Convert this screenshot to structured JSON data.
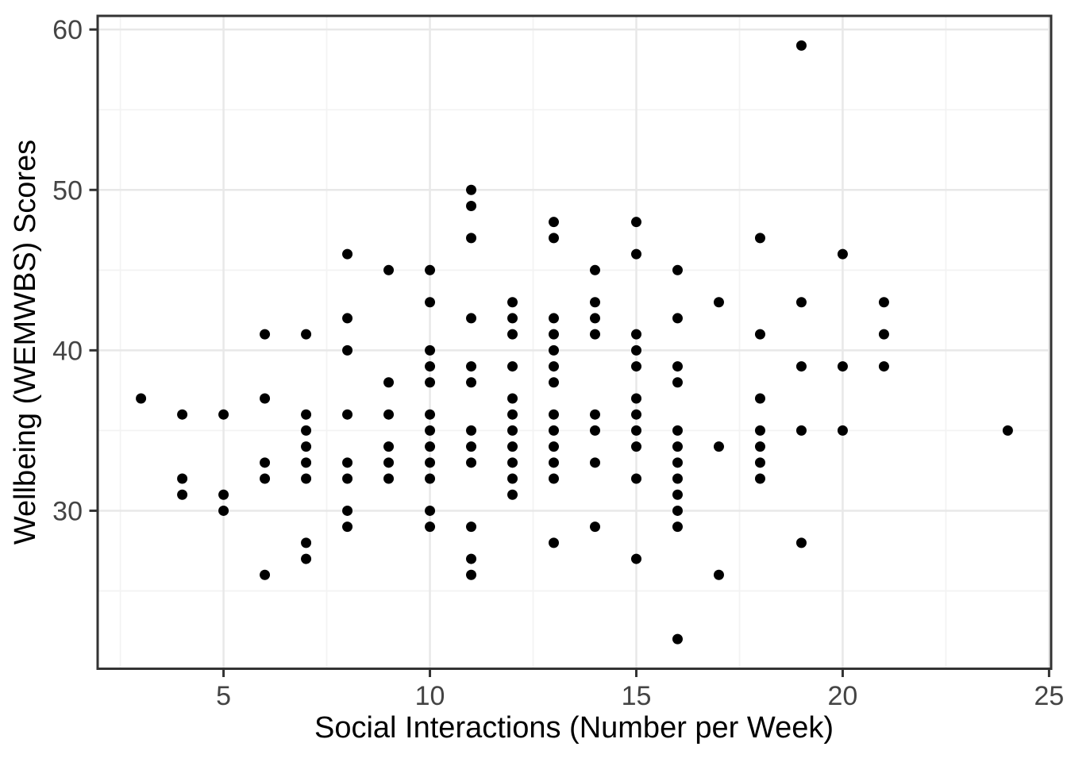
{
  "figure": {
    "background": "#FFFFFF"
  },
  "chart_data": {
    "type": "scatter",
    "title": "",
    "xlabel": "Social Interactions (Number per Week)",
    "ylabel": "Wellbeing (WEMWBS) Scores",
    "xlim": [
      1.95,
      25.05
    ],
    "ylim": [
      20.15,
      60.85
    ],
    "x_major_ticks": [
      5,
      10,
      15,
      20,
      25
    ],
    "y_major_ticks": [
      30,
      40,
      50,
      60
    ],
    "x_minor_gridlines": [
      2.5,
      7.5,
      12.5,
      17.5,
      22.5
    ],
    "y_minor_gridlines": [
      25,
      35,
      45,
      55
    ],
    "grid": "on",
    "legend": "none",
    "point_style": {
      "shape": "circle",
      "radius_px": 6.5,
      "color": "#000000"
    },
    "theme": {
      "panel_border": "#333333",
      "grid_major": "#E8E8E8",
      "grid_minor": "#F3F3F3",
      "tick_color": "#333333",
      "tick_label_color": "#444444",
      "axis_title_color": "#000000"
    },
    "points": [
      [
        3,
        37
      ],
      [
        4,
        36
      ],
      [
        4,
        32
      ],
      [
        4,
        31
      ],
      [
        5,
        36
      ],
      [
        5,
        31
      ],
      [
        5,
        30
      ],
      [
        6,
        41
      ],
      [
        6,
        37
      ],
      [
        6,
        33
      ],
      [
        6,
        32
      ],
      [
        6,
        26
      ],
      [
        7,
        41
      ],
      [
        7,
        36
      ],
      [
        7,
        35
      ],
      [
        7,
        34
      ],
      [
        7,
        33
      ],
      [
        7,
        32
      ],
      [
        7,
        28
      ],
      [
        7,
        27
      ],
      [
        8,
        46
      ],
      [
        8,
        42
      ],
      [
        8,
        40
      ],
      [
        8,
        36
      ],
      [
        8,
        33
      ],
      [
        8,
        32
      ],
      [
        8,
        30
      ],
      [
        8,
        29
      ],
      [
        9,
        45
      ],
      [
        9,
        38
      ],
      [
        9,
        36
      ],
      [
        9,
        34
      ],
      [
        9,
        33
      ],
      [
        9,
        32
      ],
      [
        10,
        45
      ],
      [
        10,
        43
      ],
      [
        10,
        40
      ],
      [
        10,
        39
      ],
      [
        10,
        38
      ],
      [
        10,
        36
      ],
      [
        10,
        35
      ],
      [
        10,
        34
      ],
      [
        10,
        33
      ],
      [
        10,
        32
      ],
      [
        10,
        30
      ],
      [
        10,
        29
      ],
      [
        11,
        50
      ],
      [
        11,
        49
      ],
      [
        11,
        47
      ],
      [
        11,
        42
      ],
      [
        11,
        39
      ],
      [
        11,
        38
      ],
      [
        11,
        35
      ],
      [
        11,
        34
      ],
      [
        11,
        33
      ],
      [
        11,
        29
      ],
      [
        11,
        27
      ],
      [
        11,
        26
      ],
      [
        12,
        43
      ],
      [
        12,
        42
      ],
      [
        12,
        41
      ],
      [
        12,
        39
      ],
      [
        12,
        37
      ],
      [
        12,
        36
      ],
      [
        12,
        35
      ],
      [
        12,
        34
      ],
      [
        12,
        33
      ],
      [
        12,
        32
      ],
      [
        12,
        31
      ],
      [
        13,
        48
      ],
      [
        13,
        47
      ],
      [
        13,
        42
      ],
      [
        13,
        41
      ],
      [
        13,
        40
      ],
      [
        13,
        39
      ],
      [
        13,
        38
      ],
      [
        13,
        36
      ],
      [
        13,
        35
      ],
      [
        13,
        34
      ],
      [
        13,
        33
      ],
      [
        13,
        32
      ],
      [
        13,
        28
      ],
      [
        14,
        45
      ],
      [
        14,
        43
      ],
      [
        14,
        42
      ],
      [
        14,
        41
      ],
      [
        14,
        36
      ],
      [
        14,
        35
      ],
      [
        14,
        33
      ],
      [
        14,
        29
      ],
      [
        15,
        48
      ],
      [
        15,
        46
      ],
      [
        15,
        41
      ],
      [
        15,
        40
      ],
      [
        15,
        39
      ],
      [
        15,
        37
      ],
      [
        15,
        36
      ],
      [
        15,
        35
      ],
      [
        15,
        34
      ],
      [
        15,
        32
      ],
      [
        15,
        27
      ],
      [
        16,
        45
      ],
      [
        16,
        42
      ],
      [
        16,
        39
      ],
      [
        16,
        38
      ],
      [
        16,
        35
      ],
      [
        16,
        34
      ],
      [
        16,
        33
      ],
      [
        16,
        32
      ],
      [
        16,
        31
      ],
      [
        16,
        30
      ],
      [
        16,
        29
      ],
      [
        16,
        22
      ],
      [
        17,
        43
      ],
      [
        17,
        34
      ],
      [
        17,
        26
      ],
      [
        18,
        47
      ],
      [
        18,
        41
      ],
      [
        18,
        37
      ],
      [
        18,
        35
      ],
      [
        18,
        34
      ],
      [
        18,
        33
      ],
      [
        18,
        32
      ],
      [
        19,
        59
      ],
      [
        19,
        43
      ],
      [
        19,
        39
      ],
      [
        19,
        35
      ],
      [
        19,
        28
      ],
      [
        20,
        46
      ],
      [
        20,
        39
      ],
      [
        20,
        35
      ],
      [
        21,
        43
      ],
      [
        21,
        41
      ],
      [
        21,
        39
      ],
      [
        24,
        35
      ]
    ]
  }
}
